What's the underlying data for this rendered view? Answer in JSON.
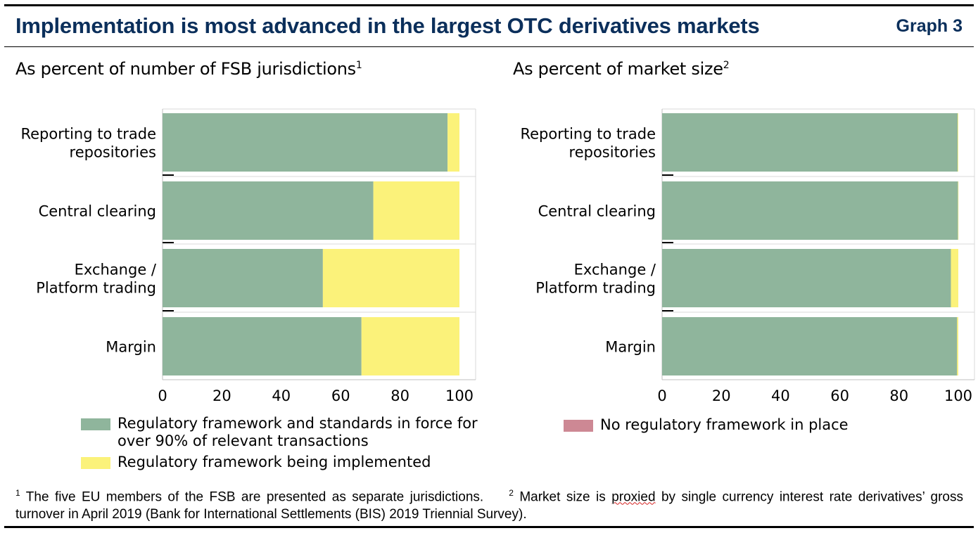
{
  "header": {
    "title": "Implementation is most advanced in the largest OTC derivatives markets",
    "graph_label": "Graph 3"
  },
  "colors": {
    "in_force": "#8fb59c",
    "being_implemented": "#fbf27a",
    "no_framework": "#cd8894",
    "title": "#0b2f5b"
  },
  "panels": [
    {
      "title": "As percent of number of FSB jurisdictions",
      "note": "1"
    },
    {
      "title": "As percent of market size",
      "note": "2"
    }
  ],
  "chart_data": [
    {
      "type": "bar",
      "orientation": "horizontal",
      "stacked": true,
      "categories": [
        [
          "Reporting to trade",
          "repositories"
        ],
        [
          "Central clearing"
        ],
        [
          "Exchange /",
          "Platform trading"
        ],
        [
          "Margin"
        ]
      ],
      "series": [
        {
          "name": "Regulatory framework and standards in force for over 90% of relevant transactions",
          "color_key": "in_force",
          "values": [
            96,
            71,
            54,
            67
          ]
        },
        {
          "name": "Regulatory framework being implemented",
          "color_key": "being_implemented",
          "values": [
            4,
            29,
            46,
            33
          ]
        },
        {
          "name": "No regulatory framework in place",
          "color_key": "no_framework",
          "values": [
            0,
            0,
            0,
            0
          ]
        }
      ],
      "xlim": [
        0,
        100
      ],
      "xticks": [
        0,
        20,
        40,
        60,
        80,
        100
      ],
      "grid": "horizontal separators"
    },
    {
      "type": "bar",
      "orientation": "horizontal",
      "stacked": true,
      "categories": [
        [
          "Reporting to trade",
          "repositories"
        ],
        [
          "Central clearing"
        ],
        [
          "Exchange /",
          "Platform trading"
        ],
        [
          "Margin"
        ]
      ],
      "series": [
        {
          "name": "Regulatory framework and standards in force for over 90% of relevant transactions",
          "color_key": "in_force",
          "values": [
            99.8,
            99.9,
            97.5,
            99.6
          ]
        },
        {
          "name": "Regulatory framework being implemented",
          "color_key": "being_implemented",
          "values": [
            0.2,
            0.1,
            2.5,
            0.4
          ]
        },
        {
          "name": "No regulatory framework in place",
          "color_key": "no_framework",
          "values": [
            0,
            0,
            0,
            0
          ]
        }
      ],
      "xlim": [
        0,
        100
      ],
      "xticks": [
        0,
        20,
        40,
        60,
        80,
        100
      ],
      "grid": "horizontal separators"
    }
  ],
  "legend_left": [
    {
      "lines": [
        "Regulatory framework and standards in force for",
        "over 90% of relevant transactions"
      ],
      "color_key": "in_force"
    },
    {
      "lines": [
        "Regulatory framework being implemented"
      ],
      "color_key": "being_implemented"
    }
  ],
  "legend_right": [
    {
      "lines": [
        "No regulatory framework in place"
      ],
      "color_key": "no_framework"
    }
  ],
  "footnotes": {
    "fn1_mark": "1",
    "fn1_text": "The five EU members of the FSB are presented as separate jurisdictions.",
    "fn2_mark": "2",
    "fn2_pre": "Market size is",
    "fn2_flagged": "proxied",
    "fn2_post": "by single currency interest rate derivatives’ gross turnover in April 2019 (Bank for International Settlements (BIS) 2019 Triennial Survey)."
  }
}
